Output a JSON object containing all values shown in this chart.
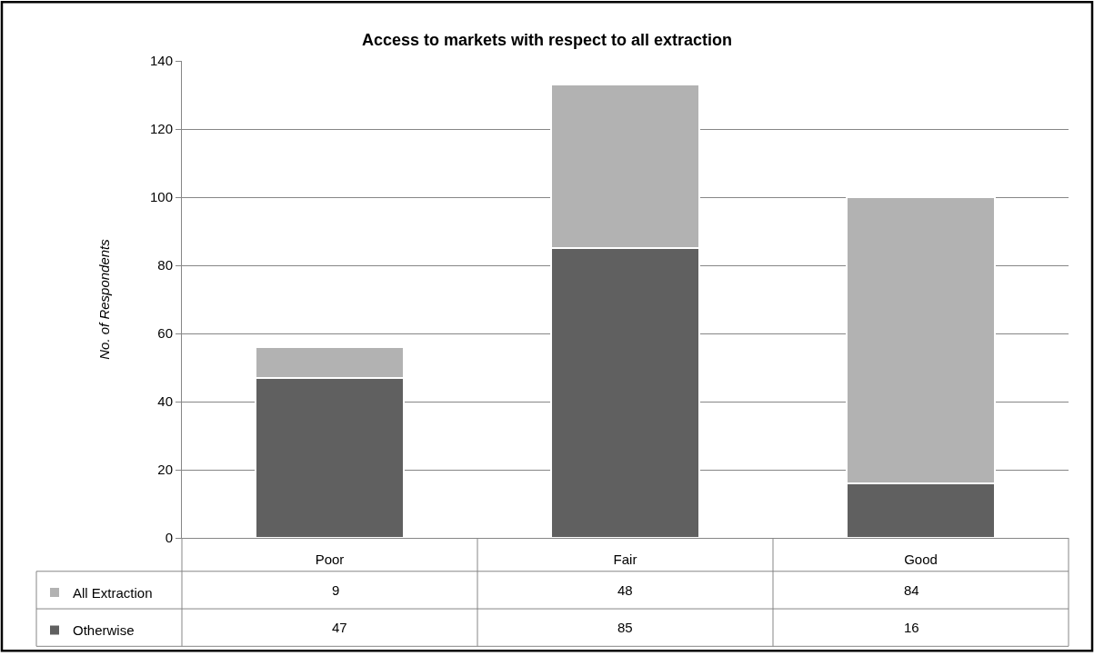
{
  "chart_data": {
    "type": "bar",
    "title": "Access to markets with respect to all extraction",
    "ylabel": "No. of Respondents",
    "categories": [
      "Poor",
      "Fair",
      "Good"
    ],
    "stacked": true,
    "series": [
      {
        "name": "Otherwise",
        "color": "#606060",
        "values": [
          47,
          85,
          16
        ]
      },
      {
        "name": "All Extraction",
        "color": "#b2b2b2",
        "values": [
          9,
          48,
          84
        ]
      }
    ],
    "ylim": [
      0,
      140
    ],
    "yticks": [
      0,
      20,
      40,
      60,
      80,
      100,
      120,
      140
    ],
    "grid": "y",
    "legend": "bottom",
    "data_labels": true
  }
}
